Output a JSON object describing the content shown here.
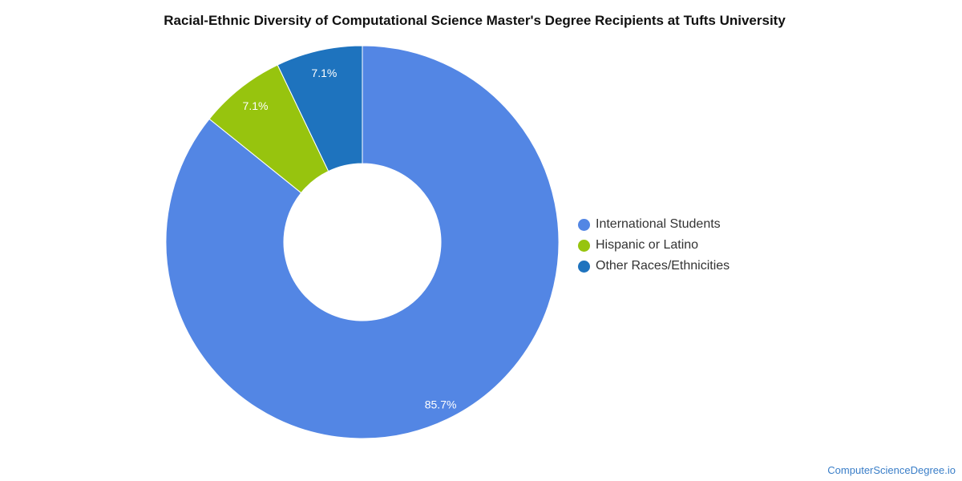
{
  "chart_data": {
    "type": "pie",
    "title": "Racial-Ethnic Diversity of Computational Science Master's Degree Recipients at Tufts University",
    "legend_position": "right",
    "slices": [
      {
        "label": "International Students",
        "value": 85.7,
        "display": "85.7%",
        "color": "#5386e4"
      },
      {
        "label": "Hispanic or Latino",
        "value": 7.1,
        "display": "7.1%",
        "color": "#97c40e"
      },
      {
        "label": "Other Races/Ethnicities",
        "value": 7.1,
        "display": "7.1%",
        "color": "#1e73be"
      }
    ]
  },
  "watermark": "ComputerScienceDegree.io"
}
